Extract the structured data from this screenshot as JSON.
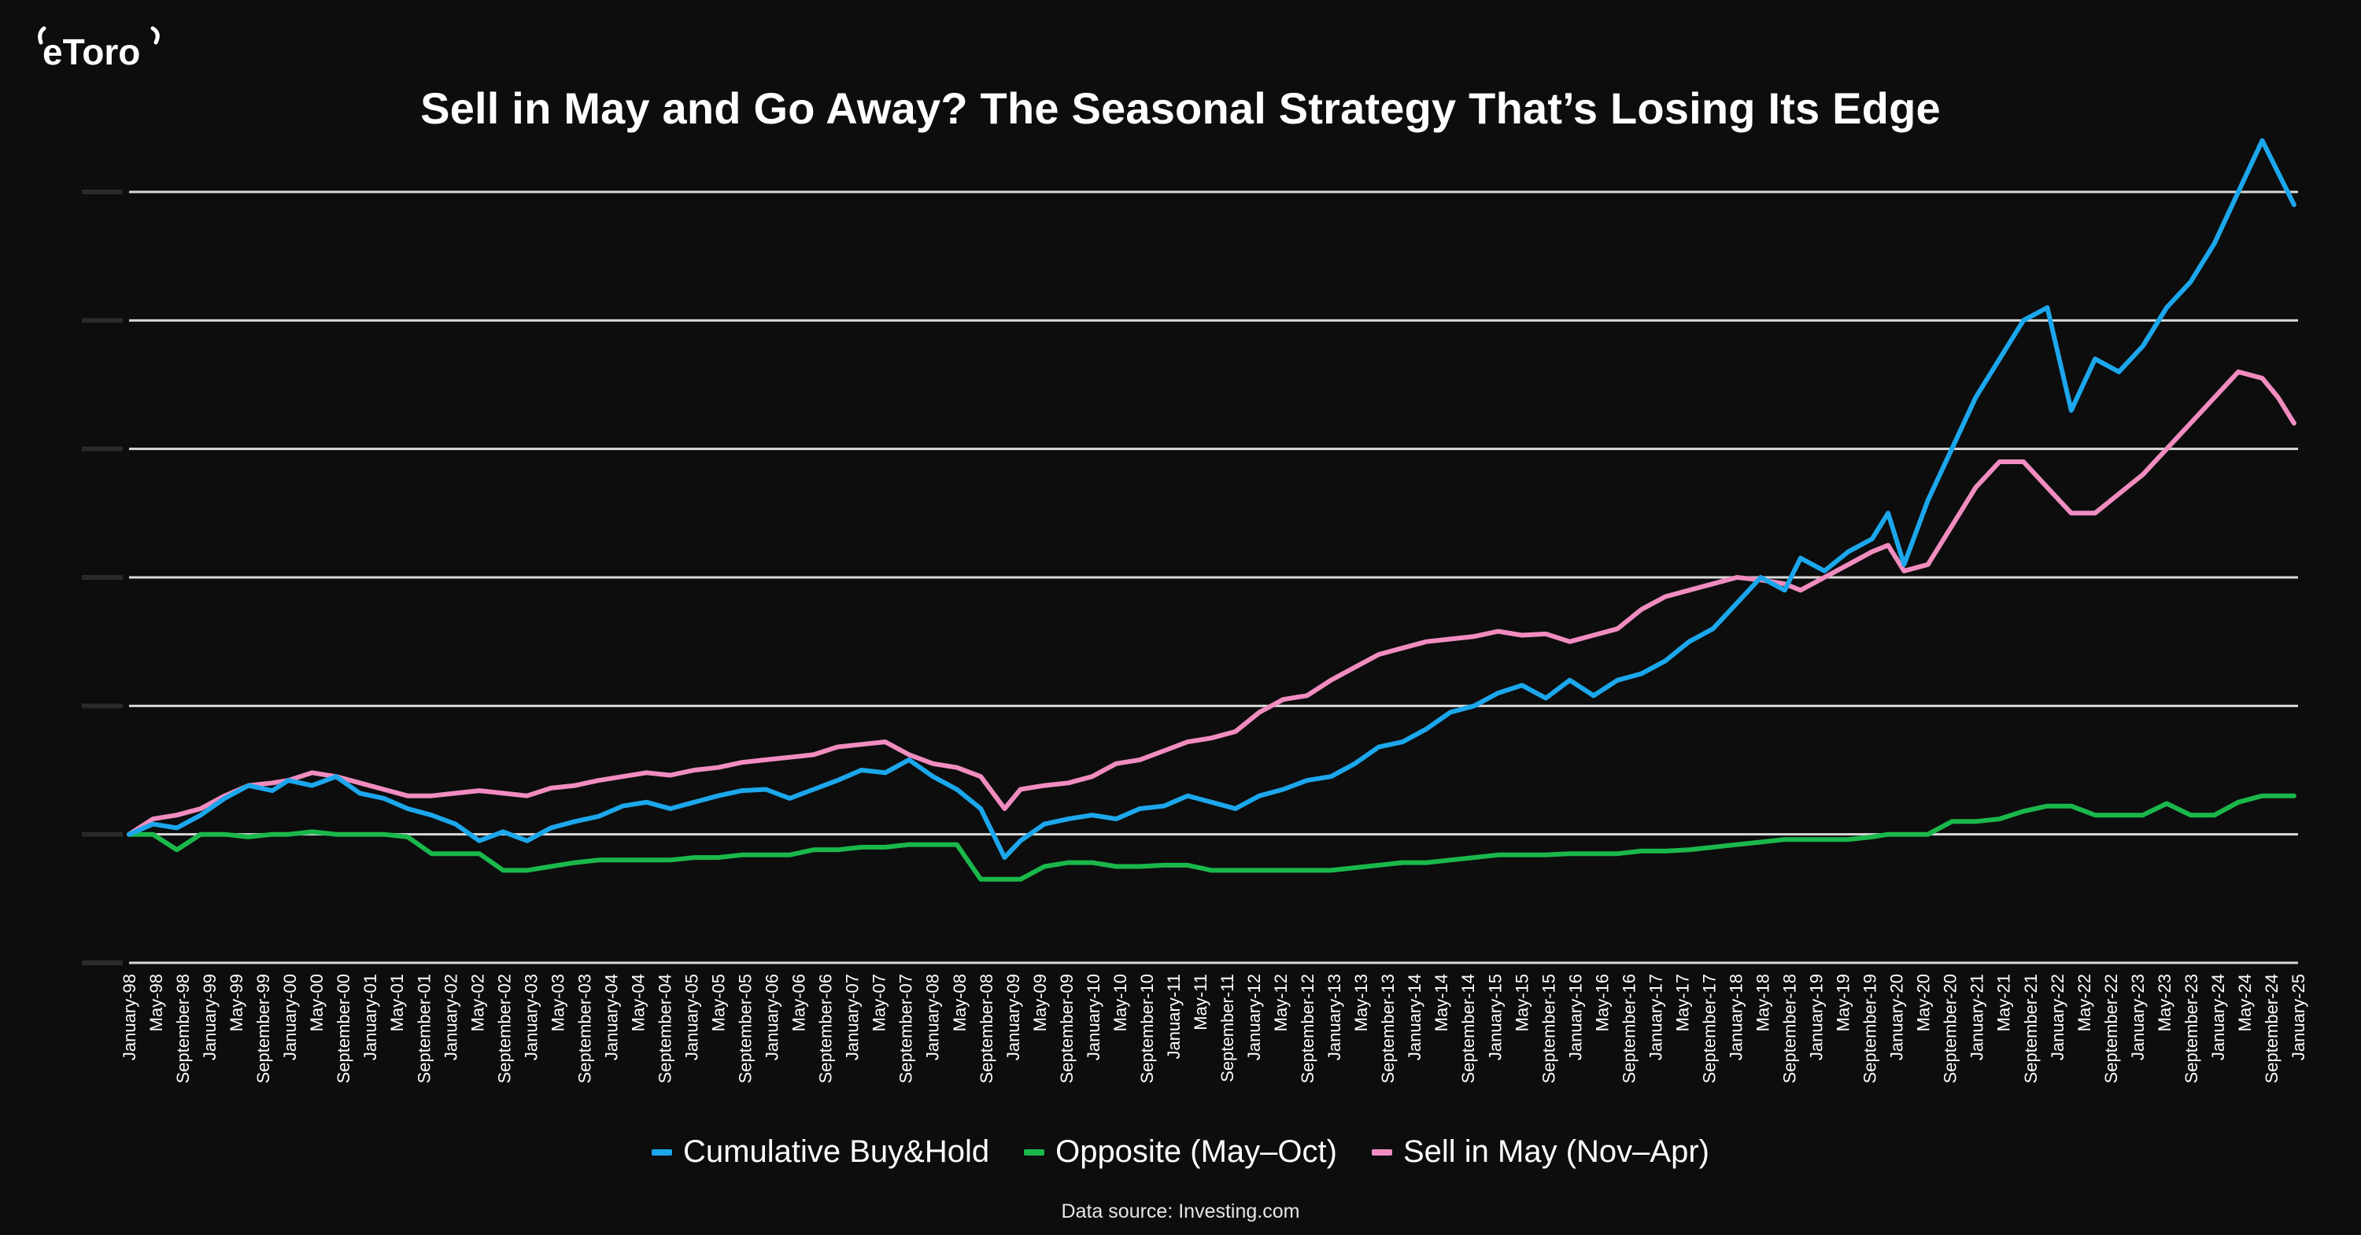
{
  "brand": {
    "logo_text": "eToro"
  },
  "title": "Sell in May and Go Away? The Seasonal Strategy That’s Losing Its Edge",
  "source": "Data source: Investing.com",
  "chart_data": {
    "type": "line",
    "title": "Sell in May and Go Away? The Seasonal Strategy That’s Losing Its Edge",
    "xlabel": "",
    "ylabel": "",
    "ylim": [
      -100,
      500
    ],
    "grid": true,
    "legend_position": "bottom",
    "x_tick_labels": [
      "January-98",
      "May-98",
      "September-98",
      "January-99",
      "May-99",
      "September-99",
      "January-00",
      "May-00",
      "September-00",
      "January-01",
      "May-01",
      "September-01",
      "January-02",
      "May-02",
      "September-02",
      "January-03",
      "May-03",
      "September-03",
      "January-04",
      "May-04",
      "September-04",
      "January-05",
      "May-05",
      "September-05",
      "January-06",
      "May-06",
      "September-06",
      "January-07",
      "May-07",
      "September-07",
      "January-08",
      "May-08",
      "September-08",
      "January-09",
      "May-09",
      "September-09",
      "January-10",
      "May-10",
      "September-10",
      "January-11",
      "May-11",
      "September-11",
      "January-12",
      "May-12",
      "September-12",
      "January-13",
      "May-13",
      "September-13",
      "January-14",
      "May-14",
      "September-14",
      "January-15",
      "May-15",
      "September-15",
      "January-16",
      "May-16",
      "September-16",
      "January-17",
      "May-17",
      "September-17",
      "January-18",
      "May-18",
      "September-18",
      "January-19",
      "May-19",
      "September-19",
      "January-20",
      "May-20",
      "September-20",
      "January-21",
      "May-21",
      "September-21",
      "January-22",
      "May-22",
      "September-22",
      "January-23",
      "May-23",
      "September-23",
      "January-24",
      "May-24",
      "September-24",
      "January-25"
    ],
    "series": [
      {
        "name": "Cumulative Buy&Hold",
        "color": "#1ca7ec",
        "x": [
          1998.0,
          1998.3,
          1998.6,
          1998.9,
          1999.2,
          1999.5,
          1999.8,
          2000.0,
          2000.3,
          2000.6,
          2000.9,
          2001.2,
          2001.5,
          2001.8,
          2002.1,
          2002.4,
          2002.7,
          2003.0,
          2003.3,
          2003.6,
          2003.9,
          2004.2,
          2004.5,
          2004.8,
          2005.1,
          2005.4,
          2005.7,
          2006.0,
          2006.3,
          2006.6,
          2006.9,
          2007.2,
          2007.5,
          2007.8,
          2008.1,
          2008.4,
          2008.7,
          2009.0,
          2009.2,
          2009.5,
          2009.8,
          2010.1,
          2010.4,
          2010.7,
          2011.0,
          2011.3,
          2011.6,
          2011.9,
          2012.2,
          2012.5,
          2012.8,
          2013.1,
          2013.4,
          2013.7,
          2014.0,
          2014.3,
          2014.6,
          2014.9,
          2015.2,
          2015.5,
          2015.8,
          2016.1,
          2016.4,
          2016.7,
          2017.0,
          2017.3,
          2017.6,
          2017.9,
          2018.2,
          2018.5,
          2018.8,
          2019.0,
          2019.3,
          2019.6,
          2019.9,
          2020.1,
          2020.3,
          2020.6,
          2020.9,
          2021.2,
          2021.5,
          2021.8,
          2022.1,
          2022.4,
          2022.7,
          2023.0,
          2023.3,
          2023.6,
          2023.9,
          2024.2,
          2024.5,
          2024.8,
          2025.0,
          2025.2
        ],
        "y": [
          0,
          8,
          5,
          15,
          28,
          38,
          34,
          42,
          38,
          45,
          32,
          28,
          20,
          15,
          8,
          -5,
          2,
          -5,
          5,
          10,
          14,
          22,
          25,
          20,
          25,
          30,
          34,
          35,
          28,
          35,
          42,
          50,
          48,
          58,
          45,
          35,
          20,
          -18,
          -5,
          8,
          12,
          15,
          12,
          20,
          22,
          30,
          25,
          20,
          30,
          35,
          42,
          45,
          55,
          68,
          72,
          82,
          95,
          100,
          110,
          116,
          106,
          120,
          108,
          120,
          125,
          135,
          150,
          160,
          180,
          200,
          190,
          215,
          205,
          220,
          230,
          250,
          210,
          260,
          300,
          340,
          370,
          400,
          410,
          330,
          370,
          360,
          380,
          410,
          430,
          460,
          500,
          540,
          515,
          490
        ]
      },
      {
        "name": "Opposite (May–Oct)",
        "color": "#1ab84b",
        "x": [
          1998.0,
          1998.3,
          1998.6,
          1998.9,
          1999.2,
          1999.5,
          1999.8,
          2000.0,
          2000.3,
          2000.6,
          2000.9,
          2001.2,
          2001.5,
          2001.8,
          2002.1,
          2002.4,
          2002.7,
          2003.0,
          2003.3,
          2003.6,
          2003.9,
          2004.2,
          2004.5,
          2004.8,
          2005.1,
          2005.4,
          2005.7,
          2006.0,
          2006.3,
          2006.6,
          2006.9,
          2007.2,
          2007.5,
          2007.8,
          2008.1,
          2008.4,
          2008.7,
          2009.0,
          2009.2,
          2009.5,
          2009.8,
          2010.1,
          2010.4,
          2010.7,
          2011.0,
          2011.3,
          2011.6,
          2011.9,
          2012.2,
          2012.5,
          2012.8,
          2013.1,
          2013.4,
          2013.7,
          2014.0,
          2014.3,
          2014.6,
          2014.9,
          2015.2,
          2015.5,
          2015.8,
          2016.1,
          2016.4,
          2016.7,
          2017.0,
          2017.3,
          2017.6,
          2017.9,
          2018.2,
          2018.5,
          2018.8,
          2019.0,
          2019.3,
          2019.6,
          2019.9,
          2020.1,
          2020.3,
          2020.6,
          2020.9,
          2021.2,
          2021.5,
          2021.8,
          2022.1,
          2022.4,
          2022.7,
          2023.0,
          2023.3,
          2023.6,
          2023.9,
          2024.2,
          2024.5,
          2024.8,
          2025.0,
          2025.2
        ],
        "y": [
          0,
          0,
          -12,
          0,
          0,
          -2,
          0,
          0,
          2,
          0,
          0,
          0,
          -2,
          -15,
          -15,
          -15,
          -28,
          -28,
          -25,
          -22,
          -20,
          -20,
          -20,
          -20,
          -18,
          -18,
          -16,
          -16,
          -16,
          -12,
          -12,
          -10,
          -10,
          -8,
          -8,
          -8,
          -35,
          -35,
          -35,
          -25,
          -22,
          -22,
          -25,
          -25,
          -24,
          -24,
          -28,
          -28,
          -28,
          -28,
          -28,
          -28,
          -26,
          -24,
          -22,
          -22,
          -20,
          -18,
          -16,
          -16,
          -16,
          -15,
          -15,
          -15,
          -13,
          -13,
          -12,
          -10,
          -8,
          -6,
          -4,
          -4,
          -4,
          -4,
          -2,
          0,
          0,
          0,
          10,
          10,
          12,
          18,
          22,
          22,
          15,
          15,
          15,
          24,
          15,
          15,
          25,
          30,
          30,
          30
        ]
      },
      {
        "name": "Sell in May (Nov–Apr)",
        "color": "#f08cc0",
        "x": [
          1998.0,
          1998.3,
          1998.6,
          1998.9,
          1999.2,
          1999.5,
          1999.8,
          2000.0,
          2000.3,
          2000.6,
          2000.9,
          2001.2,
          2001.5,
          2001.8,
          2002.1,
          2002.4,
          2002.7,
          2003.0,
          2003.3,
          2003.6,
          2003.9,
          2004.2,
          2004.5,
          2004.8,
          2005.1,
          2005.4,
          2005.7,
          2006.0,
          2006.3,
          2006.6,
          2006.9,
          2007.2,
          2007.5,
          2007.8,
          2008.1,
          2008.4,
          2008.7,
          2009.0,
          2009.2,
          2009.5,
          2009.8,
          2010.1,
          2010.4,
          2010.7,
          2011.0,
          2011.3,
          2011.6,
          2011.9,
          2012.2,
          2012.5,
          2012.8,
          2013.1,
          2013.4,
          2013.7,
          2014.0,
          2014.3,
          2014.6,
          2014.9,
          2015.2,
          2015.5,
          2015.8,
          2016.1,
          2016.4,
          2016.7,
          2017.0,
          2017.3,
          2017.6,
          2017.9,
          2018.2,
          2018.5,
          2018.8,
          2019.0,
          2019.3,
          2019.6,
          2019.9,
          2020.1,
          2020.3,
          2020.6,
          2020.9,
          2021.2,
          2021.5,
          2021.8,
          2022.1,
          2022.4,
          2022.7,
          2023.0,
          2023.3,
          2023.6,
          2023.9,
          2024.2,
          2024.5,
          2024.8,
          2025.0,
          2025.2
        ],
        "y": [
          0,
          12,
          15,
          20,
          30,
          38,
          40,
          42,
          48,
          45,
          40,
          35,
          30,
          30,
          32,
          34,
          32,
          30,
          36,
          38,
          42,
          45,
          48,
          46,
          50,
          52,
          56,
          58,
          60,
          62,
          68,
          70,
          72,
          62,
          55,
          52,
          45,
          20,
          35,
          38,
          40,
          45,
          55,
          58,
          65,
          72,
          75,
          80,
          95,
          105,
          108,
          120,
          130,
          140,
          145,
          150,
          152,
          154,
          158,
          155,
          156,
          150,
          155,
          160,
          175,
          185,
          190,
          195,
          200,
          198,
          195,
          190,
          200,
          210,
          220,
          225,
          205,
          210,
          240,
          270,
          290,
          290,
          270,
          250,
          250,
          265,
          280,
          300,
          320,
          340,
          360,
          355,
          340,
          320
        ]
      }
    ]
  }
}
